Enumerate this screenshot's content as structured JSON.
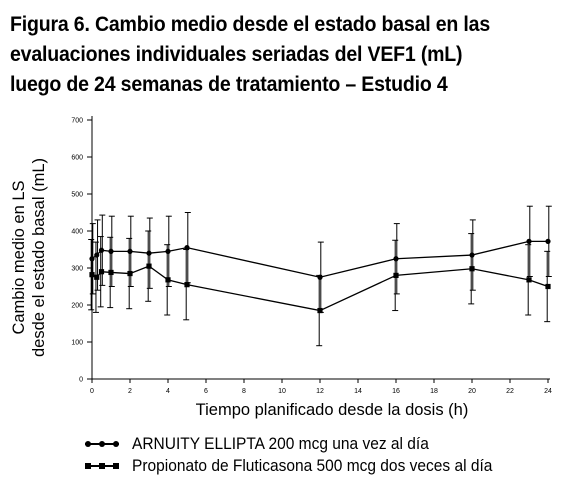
{
  "title_lines": [
    "Figura 6. Cambio medio desde el estado basal en las",
    "evaluaciones individuales seriadas del VEF1  (mL)",
    "luego de 24 semanas de tratamiento – Estudio 4"
  ],
  "chart_data": {
    "type": "line",
    "xlabel": "Tiempo planificado desde la dosis (h)",
    "ylabel_lines": [
      "Cambio medio en LS",
      "desde el estado basal (mL)"
    ],
    "xlim": [
      0,
      24
    ],
    "ylim": [
      0,
      700
    ],
    "xticks": [
      0,
      2,
      4,
      6,
      8,
      10,
      12,
      14,
      16,
      18,
      20,
      22,
      24
    ],
    "yticks": [
      0,
      100,
      200,
      300,
      400,
      500,
      600,
      700
    ],
    "grid": false,
    "series": [
      {
        "name": "ARNUITY ELLIPTA 200 mcg una vez al día",
        "marker": "circle",
        "x": [
          0,
          0.25,
          0.5,
          1,
          2,
          3,
          4,
          5,
          12,
          16,
          20,
          23,
          24
        ],
        "y": [
          325,
          335,
          348,
          345,
          345,
          340,
          345,
          355,
          275,
          325,
          335,
          372,
          372
        ],
        "err": [
          95,
          95,
          95,
          95,
          95,
          95,
          95,
          95,
          95,
          95,
          95,
          95,
          95
        ]
      },
      {
        "name": "Propionato de Fluticasona 500 mcg dos veces al día",
        "marker": "square",
        "x": [
          0,
          0.25,
          0.5,
          1,
          2,
          3,
          4,
          5,
          12,
          16,
          20,
          23,
          24
        ],
        "y": [
          282,
          275,
          290,
          288,
          285,
          305,
          268,
          255,
          185,
          280,
          298,
          268,
          250
        ],
        "err": [
          95,
          95,
          95,
          95,
          95,
          95,
          95,
          95,
          95,
          95,
          95,
          95,
          95
        ]
      }
    ]
  },
  "legend": [
    "ARNUITY ELLIPTA 200 mcg una vez al día",
    "Propionato de Fluticasona 500 mcg dos veces al día"
  ]
}
